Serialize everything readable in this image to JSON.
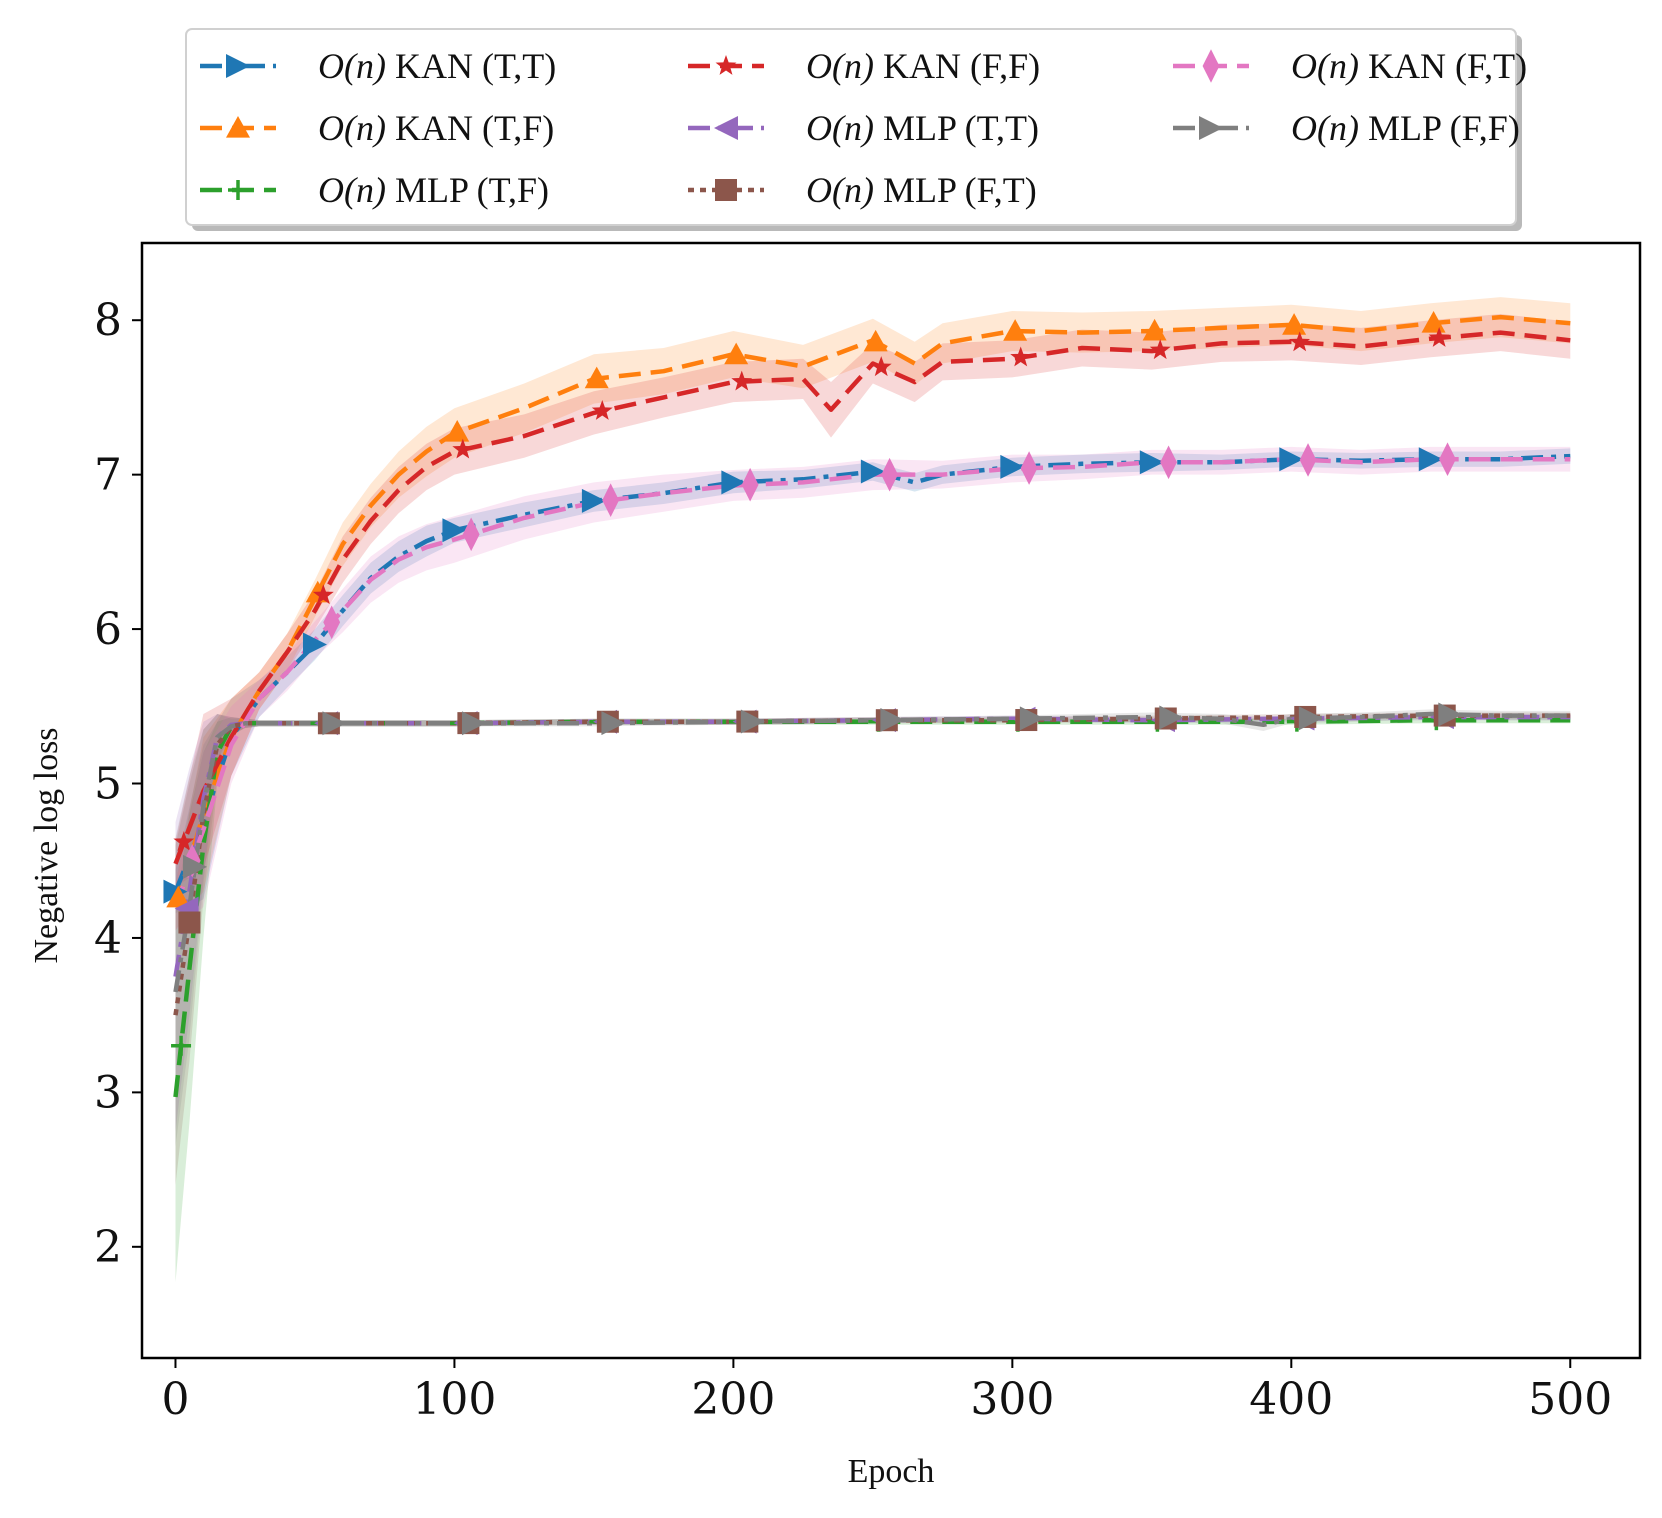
{
  "chart_data": {
    "type": "line",
    "title": "",
    "xlabel": "Epoch",
    "ylabel": "Negative log loss",
    "xlim": [
      -12,
      525
    ],
    "ylim": [
      1.28,
      8.5
    ],
    "xticks": [
      0,
      100,
      200,
      300,
      400,
      500
    ],
    "yticks": [
      2,
      3,
      4,
      5,
      6,
      7,
      8
    ],
    "grid": false,
    "legend_position": "top (above plot)",
    "legend_prefix": "O(n)",
    "series": [
      {
        "name": "O(n) KAN (T,T)",
        "model": "KAN",
        "flags": "(T,T)",
        "color": "#1f77b4",
        "dash": "dashdot",
        "marker": "triangle-right",
        "x": [
          0,
          10,
          20,
          30,
          40,
          50,
          60,
          70,
          80,
          90,
          100,
          125,
          150,
          175,
          200,
          225,
          250,
          265,
          275,
          300,
          325,
          350,
          375,
          400,
          425,
          450,
          475,
          500
        ],
        "y": [
          4.3,
          4.75,
          5.3,
          5.55,
          5.72,
          5.9,
          6.12,
          6.33,
          6.47,
          6.57,
          6.64,
          6.74,
          6.83,
          6.88,
          6.95,
          6.97,
          7.02,
          6.95,
          7.0,
          7.05,
          7.07,
          7.08,
          7.08,
          7.1,
          7.09,
          7.1,
          7.1,
          7.12
        ],
        "band": [
          0.14,
          0.5,
          0.25,
          0.12,
          0.1,
          0.1,
          0.1,
          0.1,
          0.1,
          0.1,
          0.08,
          0.08,
          0.07,
          0.07,
          0.07,
          0.06,
          0.06,
          0.06,
          0.06,
          0.06,
          0.06,
          0.06,
          0.05,
          0.05,
          0.05,
          0.05,
          0.05,
          0.05
        ]
      },
      {
        "name": "O(n) KAN (T,F)",
        "model": "KAN",
        "flags": "(T,F)",
        "color": "#ff7f0e",
        "dash": "dashed",
        "marker": "triangle-up",
        "x": [
          0,
          10,
          20,
          30,
          40,
          50,
          60,
          70,
          80,
          90,
          100,
          125,
          150,
          175,
          200,
          225,
          250,
          265,
          275,
          300,
          325,
          350,
          375,
          400,
          425,
          450,
          475,
          500
        ],
        "y": [
          4.2,
          4.8,
          5.3,
          5.6,
          5.85,
          6.2,
          6.55,
          6.8,
          7.0,
          7.15,
          7.27,
          7.43,
          7.62,
          7.67,
          7.78,
          7.7,
          7.87,
          7.72,
          7.85,
          7.93,
          7.92,
          7.93,
          7.95,
          7.97,
          7.93,
          7.98,
          8.02,
          7.98
        ],
        "band": [
          0.15,
          0.5,
          0.25,
          0.12,
          0.12,
          0.12,
          0.14,
          0.14,
          0.15,
          0.16,
          0.16,
          0.16,
          0.16,
          0.15,
          0.15,
          0.14,
          0.14,
          0.14,
          0.13,
          0.13,
          0.13,
          0.13,
          0.13,
          0.13,
          0.13,
          0.13,
          0.13,
          0.13
        ]
      },
      {
        "name": "O(n) MLP (T,F)",
        "model": "MLP",
        "flags": "(T,F)",
        "color": "#2ca02c",
        "dash": "dashed",
        "marker": "plus",
        "x": [
          0,
          5,
          10,
          15,
          20,
          25,
          30,
          50,
          100,
          150,
          200,
          250,
          300,
          350,
          400,
          450,
          500
        ],
        "y": [
          2.97,
          3.8,
          4.6,
          5.2,
          5.37,
          5.39,
          5.39,
          5.39,
          5.39,
          5.4,
          5.4,
          5.4,
          5.4,
          5.4,
          5.4,
          5.41,
          5.41
        ],
        "band": [
          1.2,
          1.0,
          0.6,
          0.2,
          0.06,
          0.03,
          0.02,
          0.02,
          0.02,
          0.02,
          0.02,
          0.02,
          0.02,
          0.02,
          0.02,
          0.02,
          0.02
        ]
      },
      {
        "name": "O(n) KAN (F,F)",
        "model": "KAN",
        "flags": "(F,F)",
        "color": "#d62728",
        "dash": "dashed",
        "marker": "star",
        "x": [
          0,
          10,
          20,
          30,
          40,
          50,
          60,
          70,
          80,
          90,
          100,
          125,
          150,
          175,
          200,
          225,
          235,
          250,
          265,
          275,
          300,
          325,
          350,
          375,
          400,
          425,
          450,
          475,
          500
        ],
        "y": [
          4.48,
          4.95,
          5.3,
          5.6,
          5.85,
          6.12,
          6.45,
          6.7,
          6.9,
          7.05,
          7.15,
          7.25,
          7.4,
          7.5,
          7.6,
          7.62,
          7.42,
          7.72,
          7.6,
          7.73,
          7.75,
          7.82,
          7.8,
          7.85,
          7.86,
          7.83,
          7.88,
          7.92,
          7.87
        ],
        "band": [
          0.15,
          0.5,
          0.25,
          0.12,
          0.12,
          0.12,
          0.15,
          0.15,
          0.15,
          0.15,
          0.15,
          0.14,
          0.14,
          0.13,
          0.13,
          0.13,
          0.18,
          0.13,
          0.13,
          0.12,
          0.12,
          0.12,
          0.12,
          0.12,
          0.12,
          0.12,
          0.12,
          0.12,
          0.12
        ]
      },
      {
        "name": "O(n) MLP (T,T)",
        "model": "MLP",
        "flags": "(T,T)",
        "color": "#9467bd",
        "dash": "dashdot",
        "marker": "triangle-left",
        "x": [
          0,
          5,
          10,
          15,
          20,
          25,
          30,
          50,
          100,
          150,
          200,
          250,
          300,
          350,
          400,
          450,
          500
        ],
        "y": [
          3.75,
          4.3,
          4.9,
          5.3,
          5.38,
          5.39,
          5.39,
          5.39,
          5.39,
          5.4,
          5.4,
          5.41,
          5.42,
          5.41,
          5.42,
          5.43,
          5.43
        ],
        "band": [
          1.0,
          0.8,
          0.5,
          0.15,
          0.05,
          0.03,
          0.02,
          0.02,
          0.02,
          0.02,
          0.02,
          0.02,
          0.02,
          0.02,
          0.02,
          0.02,
          0.02
        ]
      },
      {
        "name": "O(n) MLP (F,T)",
        "model": "MLP",
        "flags": "(F,T)",
        "color": "#8c564b",
        "dash": "dotted",
        "marker": "square",
        "x": [
          0,
          5,
          10,
          15,
          20,
          25,
          30,
          50,
          100,
          150,
          200,
          250,
          300,
          350,
          400,
          450,
          500
        ],
        "y": [
          3.5,
          4.1,
          4.8,
          5.25,
          5.37,
          5.39,
          5.39,
          5.39,
          5.39,
          5.4,
          5.4,
          5.41,
          5.41,
          5.42,
          5.43,
          5.44,
          5.44
        ],
        "band": [
          1.1,
          0.9,
          0.55,
          0.2,
          0.06,
          0.03,
          0.02,
          0.02,
          0.02,
          0.02,
          0.02,
          0.02,
          0.02,
          0.02,
          0.02,
          0.02,
          0.02
        ]
      },
      {
        "name": "O(n) KAN (F,T)",
        "model": "KAN",
        "flags": "(F,T)",
        "color": "#e377c2",
        "dash": "dashed",
        "marker": "thin-diamond",
        "x": [
          0,
          10,
          20,
          30,
          40,
          50,
          60,
          70,
          80,
          90,
          100,
          125,
          150,
          175,
          200,
          225,
          250,
          275,
          300,
          325,
          350,
          375,
          400,
          425,
          450,
          475,
          500
        ],
        "y": [
          4.2,
          4.7,
          5.25,
          5.55,
          5.72,
          5.93,
          6.12,
          6.32,
          6.45,
          6.53,
          6.58,
          6.72,
          6.82,
          6.88,
          6.93,
          6.95,
          7.0,
          7.0,
          7.04,
          7.05,
          7.08,
          7.08,
          7.1,
          7.08,
          7.1,
          7.1,
          7.1
        ],
        "band": [
          0.15,
          0.5,
          0.25,
          0.12,
          0.12,
          0.12,
          0.14,
          0.15,
          0.15,
          0.15,
          0.15,
          0.14,
          0.13,
          0.12,
          0.1,
          0.1,
          0.1,
          0.09,
          0.09,
          0.08,
          0.08,
          0.08,
          0.08,
          0.08,
          0.08,
          0.08,
          0.08
        ]
      },
      {
        "name": "O(n) MLP (F,F)",
        "model": "MLP",
        "flags": "(F,F)",
        "color": "#7f7f7f",
        "dash": "dashdot",
        "marker": "triangle-right",
        "x": [
          0,
          5,
          10,
          15,
          20,
          25,
          30,
          50,
          100,
          150,
          200,
          250,
          300,
          350,
          375,
          390,
          400,
          425,
          450,
          475,
          500
        ],
        "y": [
          3.65,
          4.2,
          4.85,
          5.3,
          5.37,
          5.39,
          5.39,
          5.39,
          5.39,
          5.39,
          5.4,
          5.41,
          5.42,
          5.43,
          5.42,
          5.38,
          5.42,
          5.43,
          5.45,
          5.44,
          5.44
        ],
        "band": [
          1.0,
          0.85,
          0.5,
          0.15,
          0.05,
          0.03,
          0.02,
          0.02,
          0.02,
          0.02,
          0.02,
          0.02,
          0.02,
          0.03,
          0.03,
          0.04,
          0.03,
          0.03,
          0.03,
          0.03,
          0.03
        ]
      }
    ]
  }
}
